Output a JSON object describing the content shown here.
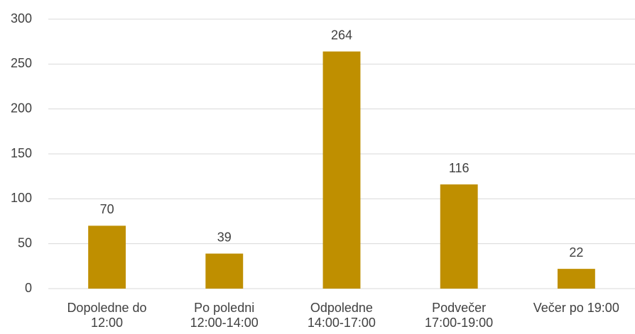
{
  "chart_data": {
    "type": "bar",
    "categories": [
      "Dopoledne do\n12:00",
      "Po poledni\n12:00-14:00",
      "Odpoledne\n14:00-17:00",
      "Podvečer\n17:00-19:00",
      "Večer po 19:00"
    ],
    "values": [
      70,
      39,
      264,
      116,
      22
    ],
    "color": "#bf8f00",
    "ylim": [
      0,
      300
    ],
    "yticks": [
      0,
      50,
      100,
      150,
      200,
      250,
      300
    ],
    "grid": true
  }
}
